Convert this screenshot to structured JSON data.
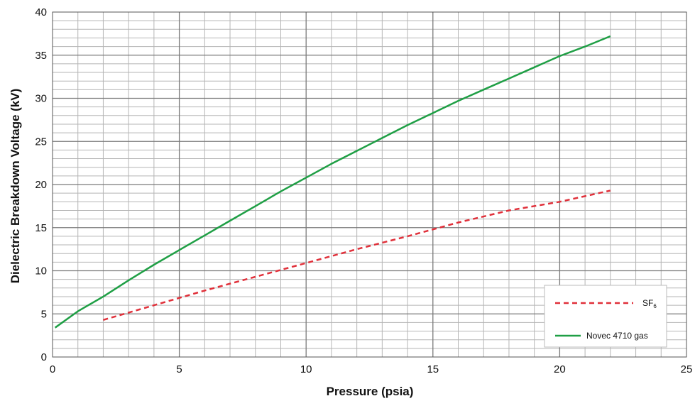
{
  "chart_data": {
    "type": "line",
    "xlabel": "Pressure (psia)",
    "ylabel": "Dielectric Breakdown Voltage (kV)",
    "xlim": [
      0,
      25
    ],
    "ylim": [
      0,
      40
    ],
    "xticks": [
      "0",
      "5",
      "10",
      "15",
      "20",
      "25"
    ],
    "yticks": [
      "0",
      "5",
      "10",
      "15",
      "20",
      "25",
      "30",
      "35",
      "40"
    ],
    "grid": true,
    "legend_position": "bottom-right",
    "series": [
      {
        "name": "SF",
        "subscript": "6",
        "color": "#e0303a",
        "style": "dashed",
        "x": [
          2,
          4,
          6,
          8,
          10,
          12,
          14,
          16,
          18,
          20,
          22
        ],
        "y": [
          4.3,
          6.0,
          7.7,
          9.3,
          10.9,
          12.5,
          14.0,
          15.6,
          17.0,
          18.0,
          19.3
        ]
      },
      {
        "name": "Novec 4710 gas",
        "color": "#1f9f45",
        "style": "solid",
        "x": [
          0.1,
          1,
          2,
          3,
          4,
          5,
          6,
          7,
          8,
          9,
          10,
          11,
          12,
          13,
          14,
          15,
          16,
          17,
          18,
          19,
          20,
          21,
          22
        ],
        "y": [
          3.4,
          5.3,
          7.0,
          8.9,
          10.7,
          12.4,
          14.1,
          15.8,
          17.5,
          19.2,
          20.8,
          22.4,
          23.9,
          25.4,
          26.9,
          28.3,
          29.7,
          31.0,
          32.3,
          33.6,
          34.9,
          36.0,
          37.2
        ]
      }
    ]
  }
}
